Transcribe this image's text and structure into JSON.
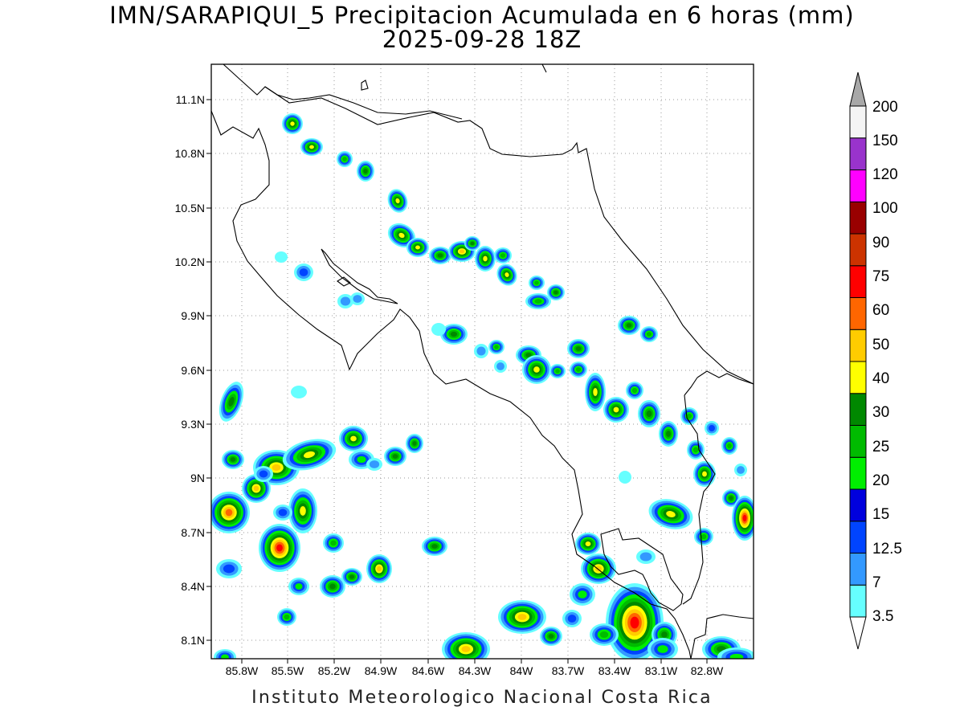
{
  "title_line1": "IMN/SARAPIQUI_5 Precipitacion Acumulada en 6 horas (mm)",
  "title_line2": "2025-09-28 18Z",
  "credit": "Instituto Meteorologico Nacional Costa Rica",
  "map": {
    "lat_ticks": [
      "11.1N",
      "10.8N",
      "10.5N",
      "10.2N",
      "9.9N",
      "9.6N",
      "9.3N",
      "9N",
      "8.7N",
      "8.4N",
      "8.1N"
    ],
    "lon_ticks": [
      "85.8W",
      "85.5W",
      "85.2W",
      "84.9W",
      "84.6W",
      "84.3W",
      "84W",
      "83.7W",
      "83.4W",
      "83.1W",
      "82.8W"
    ]
  },
  "colorbar": {
    "labels": [
      "3.5",
      "7",
      "12.5",
      "15",
      "20",
      "25",
      "30",
      "40",
      "50",
      "60",
      "75",
      "90",
      "100",
      "120",
      "150",
      "200"
    ],
    "colors": [
      "#66ffff",
      "#3399ff",
      "#0044ff",
      "#0000dd",
      "#00ee00",
      "#00bb00",
      "#008800",
      "#ffff00",
      "#ffcc00",
      "#ff6600",
      "#ff0000",
      "#cc3300",
      "#990000",
      "#ff00ff",
      "#9933cc",
      "#f4f4f4"
    ],
    "over_color": "#a8a8a8",
    "under_color": "#ffffff"
  }
}
